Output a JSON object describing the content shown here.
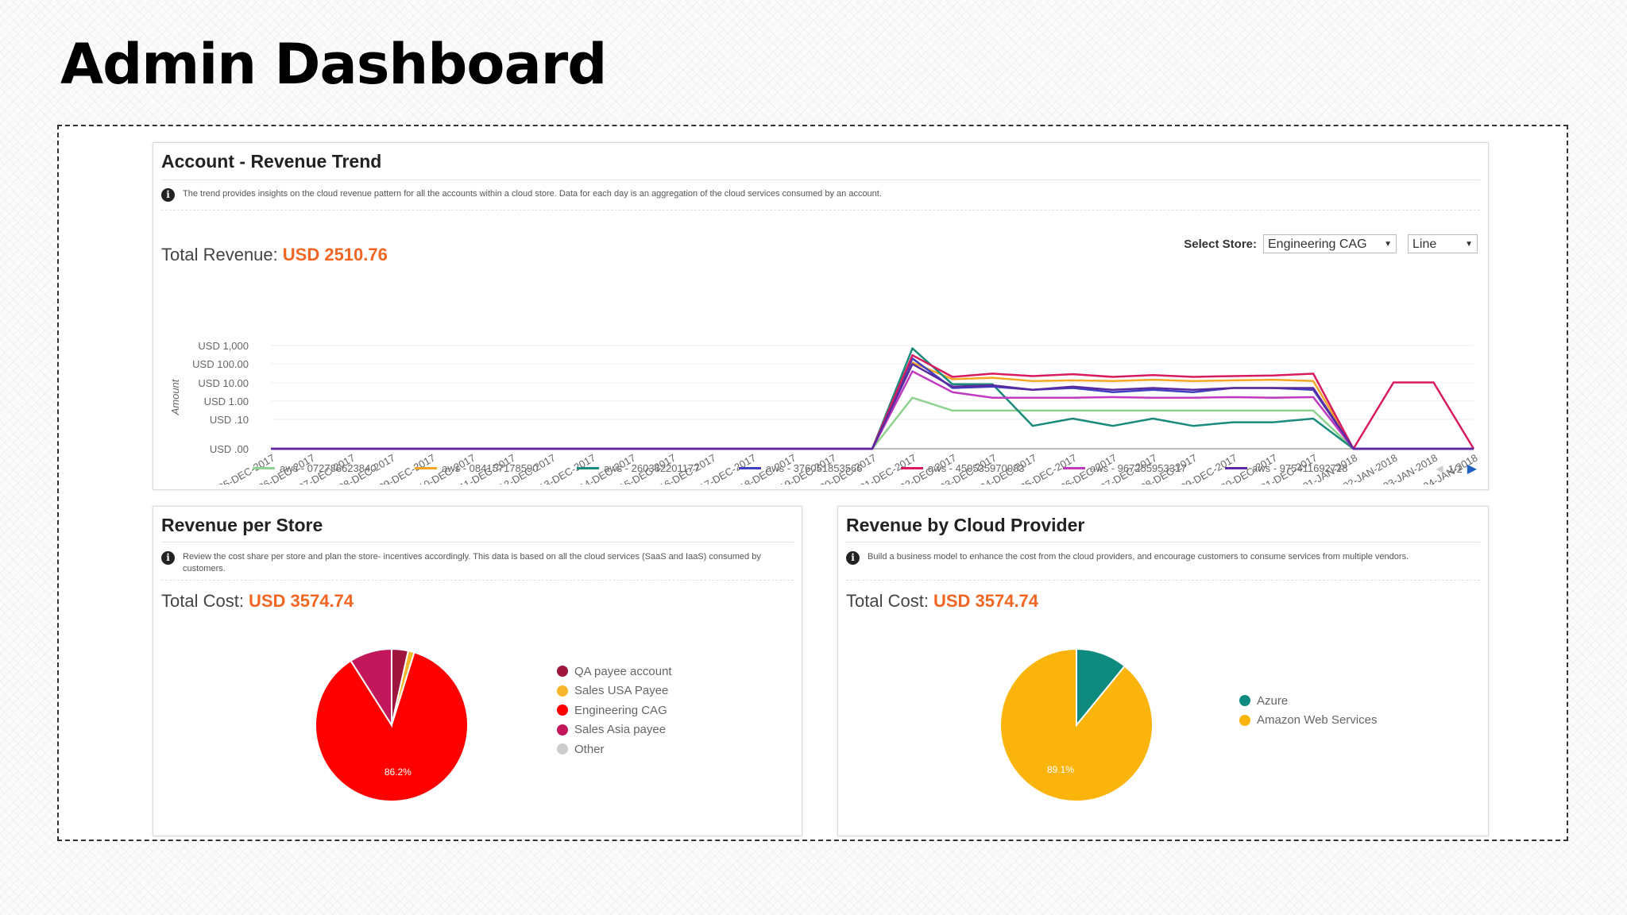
{
  "page": {
    "title": "Admin Dashboard"
  },
  "trend": {
    "title": "Account - Revenue Trend",
    "info": "The trend provides insights on the cloud revenue pattern for all the accounts within a cloud store. Data for each day is an aggregation of the cloud services consumed by an account.",
    "select_label": "Select Store:",
    "store_value": "Engineering CAG",
    "chart_type_value": "Line",
    "total_label": "Total Revenue:",
    "total_value": "USD 2510.76",
    "pager": "1/2"
  },
  "store": {
    "title": "Revenue per Store",
    "info": "Review the cost share per store and plan the store- incentives accordingly. This data is based on all the cloud services (SaaS and IaaS) consumed by customers.",
    "total_label": "Total Cost:",
    "total_value": "USD 3574.74"
  },
  "provider": {
    "title": "Revenue by Cloud Provider",
    "info": "Build a business model to enhance the cost from the cloud providers, and encourage customers to consume services from multiple vendors.",
    "total_label": "Total Cost:",
    "total_value": "USD 3574.74"
  },
  "icons": {
    "info": "info-icon",
    "dropdown": "caret-down-icon",
    "pager_prev": "triangle-left-icon",
    "pager_next": "triangle-right-icon"
  },
  "chart_data": [
    {
      "type": "line",
      "ylabel": "Amount",
      "y_scale": "log",
      "y_ticks": [
        "USD .00",
        "USD .10",
        "USD 1.00",
        "USD 10.00",
        "USD 100.00",
        "USD 1,000"
      ],
      "categories": [
        "05-DEC-2017",
        "06-DEC-2017",
        "07-DEC-2017",
        "08-DEC-2017",
        "09-DEC-2017",
        "10-DEC-2017",
        "11-DEC-2017",
        "12-DEC-2017",
        "13-DEC-2017",
        "14-DEC-2017",
        "15-DEC-2017",
        "16-DEC-2017",
        "17-DEC-2017",
        "18-DEC-2017",
        "19-DEC-2017",
        "20-DEC-2017",
        "21-DEC-2017",
        "22-DEC-2017",
        "23-DEC-2017",
        "24-DEC-2017",
        "25-DEC-2017",
        "26-DEC-2017",
        "27-DEC-2017",
        "28-DEC-2017",
        "29-DEC-2017",
        "30-DEC-2017",
        "31-DEC-2017",
        "01-JAN-2018",
        "02-JAN-2018",
        "03-JAN-2018",
        "04-JAN-2018"
      ],
      "legend_position": "bottom",
      "series": [
        {
          "name": "aws - 072786623840",
          "color": "#8fd18f",
          "values": [
            0,
            0,
            0,
            0,
            0,
            0,
            0,
            0,
            0,
            0,
            0,
            0,
            0,
            0,
            0,
            0,
            1.5,
            0.3,
            0.3,
            0.3,
            0.3,
            0.3,
            0.3,
            0.3,
            0.3,
            0.3,
            0.3,
            0,
            0,
            0,
            0
          ]
        },
        {
          "name": "aws - 084157178590",
          "color": "#f5a623",
          "values": [
            0,
            0,
            0,
            0,
            0,
            0,
            0,
            0,
            0,
            0,
            0,
            0,
            0,
            0,
            0,
            0,
            120,
            15,
            18,
            12,
            13,
            12,
            14,
            12,
            13,
            14,
            12,
            0,
            0,
            0,
            0
          ]
        },
        {
          "name": "aws - 260362201177",
          "color": "#1a8a7a",
          "values": [
            0,
            0,
            0,
            0,
            0,
            0,
            0,
            0,
            0,
            0,
            0,
            0,
            0,
            0,
            0,
            0,
            700,
            8,
            8,
            0.06,
            0.11,
            0.06,
            0.11,
            0.06,
            0.08,
            0.08,
            0.11,
            0,
            0,
            0,
            0
          ]
        },
        {
          "name": "aws - 376051853566",
          "color": "#3f3fbf",
          "values": [
            0,
            0,
            0,
            0,
            0,
            0,
            0,
            0,
            0,
            0,
            0,
            0,
            0,
            0,
            0,
            0,
            200,
            5,
            6,
            4,
            5,
            3,
            4,
            3,
            5,
            5,
            4,
            0,
            0,
            0,
            0
          ]
        },
        {
          "name": "aws - 450535970083",
          "color": "#d81b60",
          "values": [
            0,
            0,
            0,
            0,
            0,
            0,
            0,
            0,
            0,
            0,
            0,
            0,
            0,
            0,
            0,
            0,
            300,
            20,
            30,
            22,
            28,
            20,
            25,
            20,
            22,
            24,
            30,
            0,
            10,
            10,
            0
          ]
        },
        {
          "name": "aws - 967255953317",
          "color": "#c039c0",
          "values": [
            0,
            0,
            0,
            0,
            0,
            0,
            0,
            0,
            0,
            0,
            0,
            0,
            0,
            0,
            0,
            0,
            40,
            3,
            1.5,
            1.5,
            1.5,
            1.6,
            1.5,
            1.5,
            1.6,
            1.5,
            1.6,
            0,
            0,
            0,
            0
          ]
        },
        {
          "name": "aws - 975411692728",
          "color": "#5a2aa0",
          "values": [
            0,
            0,
            0,
            0,
            0,
            0,
            0,
            0,
            0,
            0,
            0,
            0,
            0,
            0,
            0,
            0,
            100,
            6,
            7,
            4,
            6,
            4,
            5,
            4,
            5,
            5,
            5,
            0,
            0,
            0,
            0
          ]
        }
      ]
    },
    {
      "type": "pie",
      "categories": [
        "QA payee account",
        "Sales USA Payee",
        "Engineering CAG",
        "Sales Asia payee",
        "Other"
      ],
      "values": [
        3.5,
        1.3,
        86.2,
        9.0,
        0.0
      ],
      "colors": [
        "#a0153e",
        "#f8b62b",
        "#ff0000",
        "#c2185b",
        "#cccccc"
      ],
      "data_labels": [
        {
          "category": "Engineering CAG",
          "text": "86.2%"
        }
      ],
      "legend_position": "right"
    },
    {
      "type": "pie",
      "categories": [
        "Azure",
        "Amazon Web Services"
      ],
      "values": [
        10.9,
        89.1
      ],
      "colors": [
        "#0e8a7e",
        "#fbb40b"
      ],
      "data_labels": [
        {
          "category": "Amazon Web Services",
          "text": "89.1%"
        }
      ],
      "legend_position": "right"
    }
  ]
}
